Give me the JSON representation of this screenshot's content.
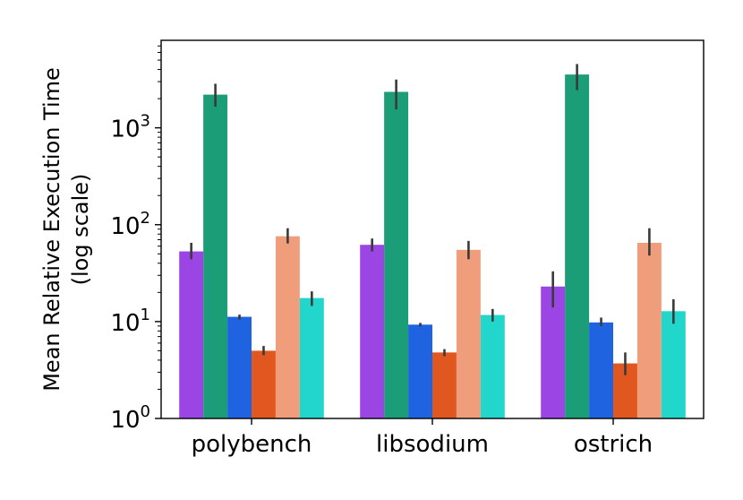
{
  "chart_data": {
    "type": "bar",
    "title": "",
    "xlabel": "",
    "ylabel": "Mean Relative Execution Time\n(log scale)",
    "yscale": "log",
    "ylim": [
      1,
      8000
    ],
    "yticks": [
      {
        "value": 1,
        "base": "10",
        "exp": "0"
      },
      {
        "value": 10,
        "base": "10",
        "exp": "1"
      },
      {
        "value": 100,
        "base": "10",
        "exp": "2"
      },
      {
        "value": 1000,
        "base": "10",
        "exp": "3"
      }
    ],
    "grid": false,
    "legend": "none",
    "categories": [
      "polybench",
      "libsodium",
      "ostrich"
    ],
    "series": [
      {
        "color": "#9b45e4",
        "values": [
          53,
          62,
          23
        ],
        "err_low": [
          44,
          53,
          14
        ],
        "err_high": [
          65,
          72,
          33
        ]
      },
      {
        "color": "#1b9e77",
        "values": [
          2200,
          2350,
          3550
        ],
        "err_low": [
          1650,
          1550,
          2450
        ],
        "err_high": [
          2850,
          3150,
          4550
        ]
      },
      {
        "color": "#1f63e0",
        "values": [
          11.2,
          9.3,
          9.8
        ],
        "err_low": [
          10.5,
          8.9,
          9.0
        ],
        "err_high": [
          11.8,
          9.7,
          11.0
        ]
      },
      {
        "color": "#e0581f",
        "values": [
          5.0,
          4.8,
          3.7
        ],
        "err_low": [
          4.5,
          4.4,
          2.8
        ],
        "err_high": [
          5.6,
          5.2,
          4.8
        ]
      },
      {
        "color": "#ef9d7a",
        "values": [
          76,
          55,
          65
        ],
        "err_low": [
          64,
          44,
          48
        ],
        "err_high": [
          92,
          68,
          92
        ]
      },
      {
        "color": "#22d6cc",
        "values": [
          17.5,
          11.7,
          12.8
        ],
        "err_low": [
          14.5,
          10.0,
          9.5
        ],
        "err_high": [
          20.5,
          13.5,
          17.0
        ]
      }
    ]
  }
}
